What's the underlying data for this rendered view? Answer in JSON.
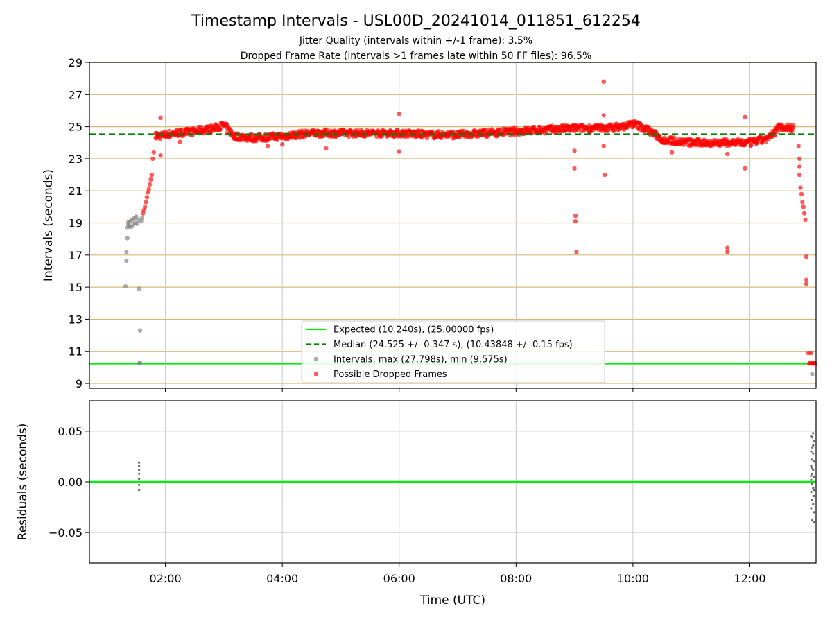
{
  "chart_data": [
    {
      "type": "scatter",
      "title": "Timestamp Intervals - USL00D_20241014_011851_612254",
      "subtitle_lines": [
        "Jitter Quality (intervals within +/-1 frame): 3.5%",
        "Dropped Frame Rate (intervals >1 frames late within 50 FF files): 96.5%"
      ],
      "xlabel": "",
      "ylabel": "Intervals (seconds)",
      "xlim": [
        "00:42",
        "13:08"
      ],
      "ylim": [
        8.7,
        29.0
      ],
      "x_ticks": [
        "02:00",
        "04:00",
        "06:00",
        "08:00",
        "10:00",
        "12:00"
      ],
      "y_ticks": [
        9,
        11,
        13,
        15,
        17,
        19,
        21,
        23,
        25,
        27,
        29
      ],
      "grid": true,
      "legend_position": "lower-center",
      "colors": {
        "expected": "#00ee00",
        "median": "#008000",
        "intervals": "#808080",
        "dropped": "#ff0000",
        "hgrid": "#d4b878",
        "vgrid": "#c8c8c8"
      },
      "series": [
        {
          "name": "Expected (10.240s), (25.00000 fps)",
          "kind": "hline",
          "y": 10.24
        },
        {
          "name": "Median (24.525 +/- 0.347 s), (10.43848 +/- 0.15 fps)",
          "kind": "hline-dashed",
          "y": 24.525
        },
        {
          "name": "Intervals, max (27.798s), min (9.575s)",
          "kind": "scatter",
          "points": [
            [
              "01:19",
              15.05
            ],
            [
              "01:20",
              16.65
            ],
            [
              "01:20",
              17.2
            ],
            [
              "01:21",
              18.05
            ],
            [
              "01:21",
              18.7
            ],
            [
              "01:22",
              18.9
            ],
            [
              "01:22",
              19.05
            ],
            [
              "01:23",
              18.8
            ],
            [
              "01:24",
              19.1
            ],
            [
              "01:25",
              18.75
            ],
            [
              "01:26",
              19.2
            ],
            [
              "01:27",
              18.9
            ],
            [
              "01:28",
              19.3
            ],
            [
              "01:29",
              19.0
            ],
            [
              "01:30",
              19.4
            ],
            [
              "01:31",
              18.95
            ],
            [
              "01:32",
              19.2
            ],
            [
              "01:33",
              14.9
            ],
            [
              "01:34",
              12.3
            ],
            [
              "01:34",
              10.3
            ],
            [
              "01:35",
              19.1
            ],
            [
              "01:36",
              19.3
            ],
            [
              "01:33",
              10.25
            ],
            [
              "13:04",
              9.575
            ]
          ]
        },
        {
          "name": "Possible Dropped Frames",
          "kind": "scatter",
          "ramp_up": [
            [
              "01:37",
              19.6
            ],
            [
              "01:38",
              19.8
            ],
            [
              "01:39",
              20.0
            ],
            [
              "01:40",
              20.3
            ],
            [
              "01:41",
              20.6
            ],
            [
              "01:42",
              20.9
            ],
            [
              "01:43",
              21.1
            ],
            [
              "01:44",
              21.4
            ],
            [
              "01:45",
              21.7
            ],
            [
              "01:46",
              22.0
            ],
            [
              "01:47",
              23.0
            ],
            [
              "01:48",
              23.4
            ],
            [
              "01:50",
              24.3
            ],
            [
              "01:51",
              24.6
            ],
            [
              "01:55",
              25.55
            ]
          ],
          "trend": [
            [
              "01:50",
              24.4
            ],
            [
              "02:10",
              24.6
            ],
            [
              "02:30",
              24.7
            ],
            [
              "02:50",
              24.9
            ],
            [
              "03:00",
              25.1
            ],
            [
              "03:10",
              24.4
            ],
            [
              "03:30",
              24.3
            ],
            [
              "04:00",
              24.4
            ],
            [
              "04:30",
              24.6
            ],
            [
              "05:00",
              24.6
            ],
            [
              "05:30",
              24.6
            ],
            [
              "06:00",
              24.6
            ],
            [
              "06:30",
              24.5
            ],
            [
              "07:00",
              24.5
            ],
            [
              "07:30",
              24.6
            ],
            [
              "08:00",
              24.7
            ],
            [
              "08:30",
              24.8
            ],
            [
              "09:00",
              24.9
            ],
            [
              "09:30",
              24.9
            ],
            [
              "09:50",
              25.0
            ],
            [
              "10:00",
              25.2
            ],
            [
              "10:15",
              24.8
            ],
            [
              "10:30",
              24.2
            ],
            [
              "11:00",
              24.0
            ],
            [
              "11:30",
              24.0
            ],
            [
              "12:00",
              24.0
            ],
            [
              "12:20",
              24.3
            ],
            [
              "12:30",
              25.0
            ],
            [
              "12:45",
              24.9
            ]
          ],
          "outliers": [
            [
              "01:55",
              23.2
            ],
            [
              "02:15",
              24.05
            ],
            [
              "03:45",
              23.8
            ],
            [
              "04:00",
              23.9
            ],
            [
              "04:45",
              23.65
            ],
            [
              "06:00",
              25.8
            ],
            [
              "06:00",
              23.45
            ],
            [
              "09:00",
              23.5
            ],
            [
              "09:00",
              22.4
            ],
            [
              "09:01",
              19.45
            ],
            [
              "09:01",
              19.1
            ],
            [
              "09:02",
              17.2
            ],
            [
              "09:30",
              27.8
            ],
            [
              "09:30",
              25.7
            ],
            [
              "09:30",
              23.8
            ],
            [
              "09:31",
              22.0
            ],
            [
              "10:40",
              23.4
            ],
            [
              "11:37",
              17.45
            ],
            [
              "11:37",
              17.2
            ],
            [
              "11:37",
              23.3
            ],
            [
              "11:55",
              25.6
            ],
            [
              "11:55",
              22.4
            ],
            [
              "12:50",
              23.8
            ],
            [
              "12:51",
              23.0
            ],
            [
              "12:51",
              22.5
            ],
            [
              "12:51",
              22.0
            ],
            [
              "12:52",
              21.2
            ],
            [
              "12:53",
              20.8
            ],
            [
              "12:54",
              20.3
            ],
            [
              "12:55",
              20.0
            ],
            [
              "12:56",
              19.6
            ],
            [
              "12:57",
              19.2
            ],
            [
              "12:58",
              16.9
            ],
            [
              "12:58",
              15.45
            ],
            [
              "12:58",
              15.2
            ],
            [
              "13:00",
              10.9
            ],
            [
              "13:01",
              10.25
            ],
            [
              "13:02",
              10.25
            ],
            [
              "13:03",
              10.9
            ],
            [
              "13:04",
              10.25
            ],
            [
              "13:05",
              10.25
            ],
            [
              "13:06",
              10.25
            ],
            [
              "13:07",
              10.25
            ]
          ]
        }
      ]
    },
    {
      "type": "scatter",
      "title": "",
      "xlabel": "Time (UTC)",
      "ylabel": "Residuals (seconds)",
      "xlim": [
        "00:42",
        "13:08"
      ],
      "ylim": [
        -0.08,
        0.08
      ],
      "x_ticks": [
        "02:00",
        "04:00",
        "06:00",
        "08:00",
        "10:00",
        "12:00"
      ],
      "y_ticks": [
        "0.05",
        "0.00",
        "−0.05"
      ],
      "y_tick_values": [
        0.05,
        0.0,
        -0.05
      ],
      "grid": true,
      "colors": {
        "zero_line": "#00ee00",
        "points": "#666666",
        "grid": "#c8c8c8"
      },
      "series": [
        {
          "kind": "hline",
          "y": 0.0
        },
        {
          "kind": "scatter",
          "points": [
            [
              "01:33",
              0.019
            ],
            [
              "01:33",
              0.016
            ],
            [
              "01:33",
              0.012
            ],
            [
              "01:33",
              0.008
            ],
            [
              "01:33",
              0.003
            ],
            [
              "01:33",
              -0.003
            ],
            [
              "01:33",
              -0.008
            ],
            [
              "13:03",
              0.045
            ],
            [
              "13:04",
              0.044
            ],
            [
              "13:05",
              0.048
            ],
            [
              "13:06",
              0.04
            ],
            [
              "13:04",
              0.034
            ],
            [
              "13:03",
              0.03
            ],
            [
              "13:05",
              0.028
            ],
            [
              "13:04",
              0.022
            ],
            [
              "13:06",
              0.02
            ],
            [
              "13:03",
              0.016
            ],
            [
              "13:05",
              0.012
            ],
            [
              "13:04",
              0.008
            ],
            [
              "13:06",
              0.005
            ],
            [
              "13:03",
              0.002
            ],
            [
              "13:04",
              -0.002
            ],
            [
              "13:05",
              -0.006
            ],
            [
              "13:03",
              -0.01
            ],
            [
              "13:06",
              -0.014
            ],
            [
              "13:04",
              -0.018
            ],
            [
              "13:05",
              -0.022
            ],
            [
              "13:03",
              -0.026
            ],
            [
              "13:06",
              -0.03
            ],
            [
              "13:04",
              -0.038
            ],
            [
              "13:06",
              -0.04
            ],
            [
              "13:05",
              0.036
            ],
            [
              "13:03",
              0.006
            ],
            [
              "13:06",
              -0.008
            ],
            [
              "13:04",
              0.014
            ]
          ]
        }
      ]
    }
  ]
}
